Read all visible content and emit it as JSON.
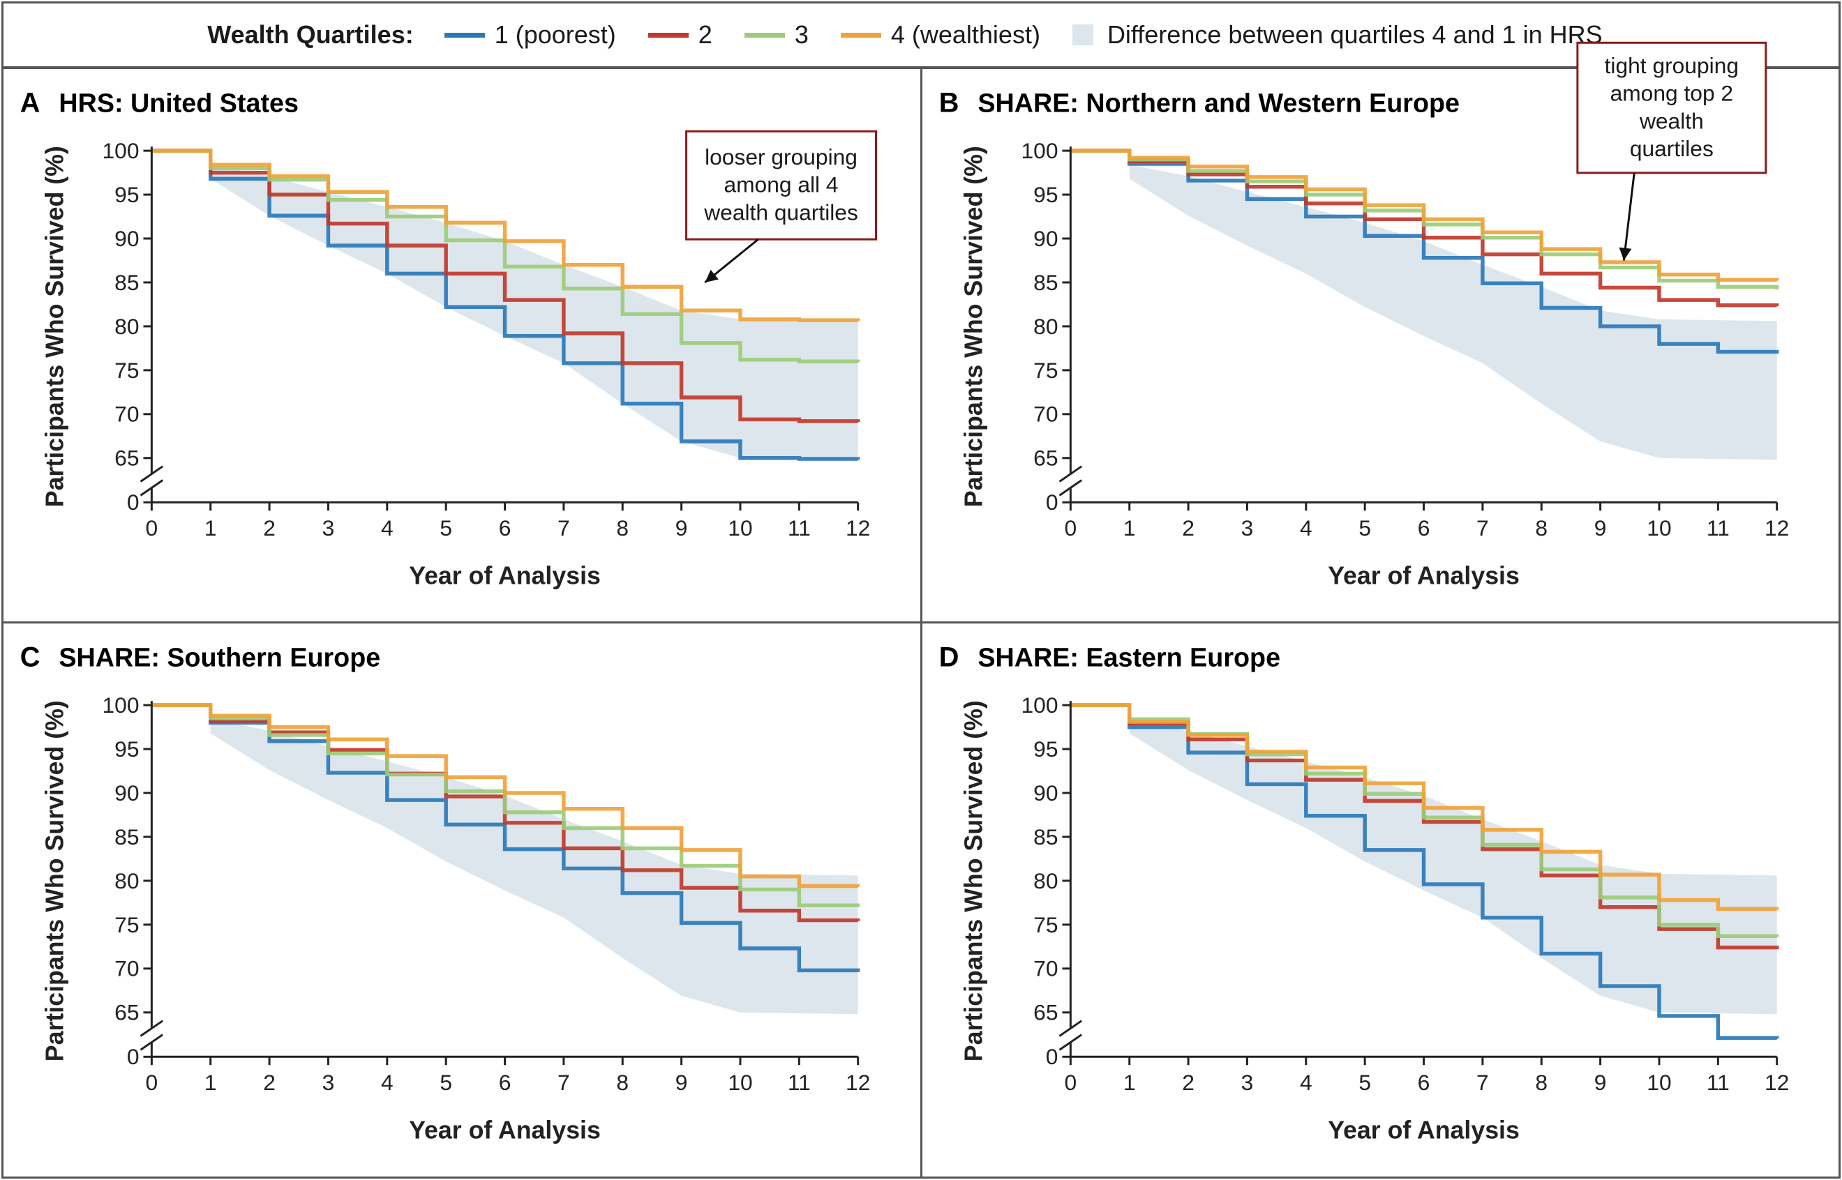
{
  "legend": {
    "title": "Wealth Quartiles:",
    "items": [
      {
        "key": "q1",
        "label": "1 (poorest)"
      },
      {
        "key": "q2",
        "label": "2"
      },
      {
        "key": "q3",
        "label": "3"
      },
      {
        "key": "q4",
        "label": "4 (wealthiest)"
      }
    ],
    "band_label": "Difference between quartiles 4 and 1 in HRS"
  },
  "colors": {
    "q1": "#2a7ab8",
    "q2": "#c0392b",
    "q3": "#9ccc79",
    "q4": "#f0a23a",
    "band": "#dde6ec",
    "border": "#555555",
    "annotation_border": "#8b1a1a"
  },
  "chart_data": [
    {
      "type": "line",
      "panel_letter": "A",
      "title": "HRS: United States",
      "xlabel": "Year of Analysis",
      "ylabel": "Participants Who Survived (%)",
      "xlim": [
        0,
        12
      ],
      "x_ticks": [
        0,
        1,
        2,
        3,
        4,
        5,
        6,
        7,
        8,
        9,
        10,
        11,
        12
      ],
      "ylim": [
        65,
        100
      ],
      "y_ticks": [
        100,
        95,
        90,
        85,
        80,
        75,
        70,
        65
      ],
      "y_zero_tick": 0,
      "axis_break": true,
      "step": true,
      "x": [
        0,
        1,
        2,
        3,
        4,
        5,
        6,
        7,
        8,
        9,
        10,
        11,
        12
      ],
      "series": [
        {
          "key": "q1",
          "values": [
            100,
            96.8,
            92.6,
            89.2,
            86.0,
            82.2,
            78.9,
            75.8,
            71.2,
            66.9,
            65.0,
            64.9,
            64.8
          ]
        },
        {
          "key": "q2",
          "values": [
            100,
            97.5,
            95.0,
            91.7,
            89.2,
            86.0,
            83.0,
            79.2,
            75.8,
            71.9,
            69.4,
            69.2,
            69.1
          ]
        },
        {
          "key": "q3",
          "values": [
            100,
            98.0,
            96.7,
            94.4,
            92.5,
            89.8,
            86.8,
            84.3,
            81.4,
            78.1,
            76.2,
            76.0,
            75.9
          ]
        },
        {
          "key": "q4",
          "values": [
            100,
            98.4,
            97.1,
            95.3,
            93.6,
            91.8,
            89.7,
            87.0,
            84.5,
            81.8,
            80.8,
            80.7,
            80.6
          ]
        }
      ],
      "band": {
        "x": [
          1,
          2,
          3,
          4,
          5,
          6,
          7,
          8,
          9,
          10,
          11,
          12
        ],
        "lower": [
          96.8,
          92.6,
          89.2,
          86.0,
          82.2,
          78.9,
          75.8,
          71.2,
          66.9,
          65.0,
          64.9,
          64.8
        ],
        "upper": [
          98.4,
          97.1,
          95.3,
          93.6,
          91.8,
          89.7,
          87.0,
          84.5,
          81.8,
          80.8,
          80.7,
          80.6
        ]
      },
      "annotation": {
        "lines": [
          "looser grouping",
          "among all 4",
          "wealth quartiles"
        ],
        "target": [
          9.4,
          85.0
        ]
      }
    },
    {
      "type": "line",
      "panel_letter": "B",
      "title": "SHARE: Northern and Western Europe",
      "xlabel": "Year of Analysis",
      "ylabel": "Participants Who Survived (%)",
      "xlim": [
        0,
        12
      ],
      "x_ticks": [
        0,
        1,
        2,
        3,
        4,
        5,
        6,
        7,
        8,
        9,
        10,
        11,
        12
      ],
      "ylim": [
        65,
        100
      ],
      "y_ticks": [
        100,
        95,
        90,
        85,
        80,
        75,
        70,
        65
      ],
      "y_zero_tick": 0,
      "axis_break": true,
      "step": true,
      "x": [
        0,
        1,
        2,
        3,
        4,
        5,
        6,
        7,
        8,
        9,
        10,
        11,
        12
      ],
      "series": [
        {
          "key": "q1",
          "values": [
            100,
            98.5,
            96.6,
            94.5,
            92.5,
            90.3,
            87.8,
            84.9,
            82.1,
            80.0,
            78.0,
            77.1,
            76.9
          ]
        },
        {
          "key": "q2",
          "values": [
            100,
            98.8,
            97.3,
            95.9,
            94.0,
            92.2,
            90.1,
            88.2,
            86.0,
            84.4,
            83.0,
            82.4,
            82.3
          ]
        },
        {
          "key": "q3",
          "values": [
            100,
            99.0,
            97.7,
            96.5,
            95.0,
            93.2,
            91.6,
            90.1,
            88.2,
            86.7,
            85.2,
            84.5,
            84.2
          ]
        },
        {
          "key": "q4",
          "values": [
            100,
            99.2,
            98.2,
            97.0,
            95.6,
            93.8,
            92.2,
            90.7,
            88.8,
            87.3,
            85.9,
            85.3,
            85.2
          ]
        }
      ],
      "band": {
        "x": [
          1,
          2,
          3,
          4,
          5,
          6,
          7,
          8,
          9,
          10,
          11,
          12
        ],
        "lower": [
          96.8,
          92.6,
          89.2,
          86.0,
          82.2,
          78.9,
          75.8,
          71.2,
          66.9,
          65.0,
          64.9,
          64.8
        ],
        "upper": [
          98.4,
          97.1,
          95.3,
          93.6,
          91.8,
          89.7,
          87.0,
          84.5,
          81.8,
          80.8,
          80.7,
          80.6
        ]
      },
      "annotation": {
        "lines": [
          "tight grouping",
          "among top 2",
          "wealth",
          "quartiles"
        ],
        "target": [
          9.4,
          87.5
        ]
      }
    },
    {
      "type": "line",
      "panel_letter": "C",
      "title": "SHARE: Southern Europe",
      "xlabel": "Year of Analysis",
      "ylabel": "Participants Who Survived (%)",
      "xlim": [
        0,
        12
      ],
      "x_ticks": [
        0,
        1,
        2,
        3,
        4,
        5,
        6,
        7,
        8,
        9,
        10,
        11,
        12
      ],
      "ylim": [
        65,
        100
      ],
      "y_ticks": [
        100,
        95,
        90,
        85,
        80,
        75,
        70,
        65
      ],
      "y_zero_tick": 0,
      "axis_break": true,
      "step": true,
      "x": [
        0,
        1,
        2,
        3,
        4,
        5,
        6,
        7,
        8,
        9,
        10,
        11,
        12
      ],
      "series": [
        {
          "key": "q1",
          "values": [
            100,
            98.0,
            95.9,
            92.3,
            89.2,
            86.4,
            83.6,
            81.4,
            78.6,
            75.2,
            72.3,
            69.8,
            69.6
          ]
        },
        {
          "key": "q2",
          "values": [
            100,
            98.2,
            96.9,
            94.9,
            92.2,
            89.6,
            86.6,
            83.7,
            81.2,
            79.2,
            76.6,
            75.5,
            75.4
          ]
        },
        {
          "key": "q3",
          "values": [
            100,
            98.5,
            96.6,
            94.5,
            92.1,
            90.2,
            87.8,
            86.0,
            83.7,
            81.7,
            79.0,
            77.2,
            77.0
          ]
        },
        {
          "key": "q4",
          "values": [
            100,
            98.8,
            97.5,
            96.1,
            94.2,
            91.8,
            90.0,
            88.2,
            86.0,
            83.5,
            80.5,
            79.4,
            79.3
          ]
        }
      ],
      "band": {
        "x": [
          1,
          2,
          3,
          4,
          5,
          6,
          7,
          8,
          9,
          10,
          11,
          12
        ],
        "lower": [
          96.8,
          92.6,
          89.2,
          86.0,
          82.2,
          78.9,
          75.8,
          71.2,
          66.9,
          65.0,
          64.9,
          64.8
        ],
        "upper": [
          98.4,
          97.1,
          95.3,
          93.6,
          91.8,
          89.7,
          87.0,
          84.5,
          81.8,
          80.8,
          80.7,
          80.6
        ]
      }
    },
    {
      "type": "line",
      "panel_letter": "D",
      "title": "SHARE: Eastern Europe",
      "xlabel": "Year of Analysis",
      "ylabel": "Participants Who Survived (%)",
      "xlim": [
        0,
        12
      ],
      "x_ticks": [
        0,
        1,
        2,
        3,
        4,
        5,
        6,
        7,
        8,
        9,
        10,
        11,
        12
      ],
      "ylim": [
        65,
        100
      ],
      "y_ticks": [
        100,
        95,
        90,
        85,
        80,
        75,
        70,
        65
      ],
      "y_zero_tick": 0,
      "axis_break": true,
      "step": true,
      "x": [
        0,
        1,
        2,
        3,
        4,
        5,
        6,
        7,
        8,
        9,
        10,
        11,
        12
      ],
      "series": [
        {
          "key": "q1",
          "values": [
            100,
            97.5,
            94.6,
            91.0,
            87.4,
            83.5,
            79.6,
            75.8,
            71.7,
            68.0,
            64.6,
            62.1,
            62.0
          ]
        },
        {
          "key": "q2",
          "values": [
            100,
            97.9,
            96.1,
            93.7,
            91.5,
            89.1,
            86.7,
            83.6,
            80.6,
            77.0,
            74.5,
            72.4,
            72.2
          ]
        },
        {
          "key": "q3",
          "values": [
            100,
            98.4,
            96.7,
            94.4,
            92.2,
            89.9,
            87.2,
            84.1,
            81.3,
            78.1,
            75.0,
            73.7,
            73.6
          ]
        },
        {
          "key": "q4",
          "values": [
            100,
            98.1,
            96.6,
            94.7,
            92.9,
            91.1,
            88.3,
            85.8,
            83.3,
            80.7,
            77.8,
            76.8,
            76.7
          ]
        }
      ],
      "band": {
        "x": [
          1,
          2,
          3,
          4,
          5,
          6,
          7,
          8,
          9,
          10,
          11,
          12
        ],
        "lower": [
          96.8,
          92.6,
          89.2,
          86.0,
          82.2,
          78.9,
          75.8,
          71.2,
          66.9,
          65.0,
          64.9,
          64.8
        ],
        "upper": [
          98.4,
          97.1,
          95.3,
          93.6,
          91.8,
          89.7,
          87.0,
          84.5,
          81.8,
          80.8,
          80.7,
          80.6
        ]
      }
    }
  ]
}
